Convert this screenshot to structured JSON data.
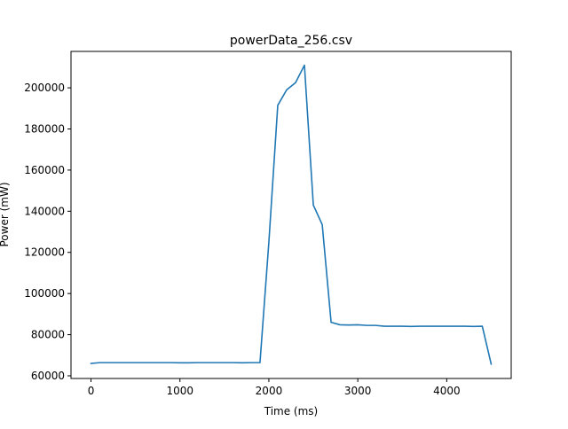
{
  "chart_data": {
    "type": "line",
    "title": "powerData_256.csv",
    "xlabel": "Time (ms)",
    "ylabel": "Power (mW)",
    "xlim": [
      -225,
      4725
    ],
    "ylim": [
      58700,
      217700
    ],
    "grid": false,
    "line_color": "#1f77b4",
    "x_ticks": [
      0,
      1000,
      2000,
      3000,
      4000
    ],
    "y_ticks": [
      60000,
      80000,
      100000,
      120000,
      140000,
      160000,
      180000,
      200000
    ],
    "series": [
      {
        "x": [
          0,
          100,
          200,
          300,
          400,
          500,
          600,
          700,
          800,
          900,
          1000,
          1100,
          1200,
          1300,
          1400,
          1500,
          1600,
          1700,
          1800,
          1900,
          2000,
          2100,
          2200,
          2300,
          2400,
          2500,
          2600,
          2700,
          2800,
          2900,
          3000,
          3100,
          3200,
          3300,
          3400,
          3500,
          3600,
          3700,
          3800,
          3900,
          4000,
          4100,
          4200,
          4300,
          4400,
          4500
        ],
        "y": [
          66000,
          66400,
          66400,
          66400,
          66400,
          66400,
          66400,
          66400,
          66400,
          66400,
          66300,
          66300,
          66400,
          66400,
          66400,
          66400,
          66400,
          66300,
          66400,
          66400,
          125000,
          191500,
          199000,
          202500,
          211000,
          143000,
          133500,
          86000,
          84800,
          84700,
          84800,
          84500,
          84500,
          84100,
          84100,
          84100,
          84000,
          84100,
          84100,
          84100,
          84100,
          84100,
          84100,
          84000,
          84100,
          65700
        ]
      }
    ]
  }
}
